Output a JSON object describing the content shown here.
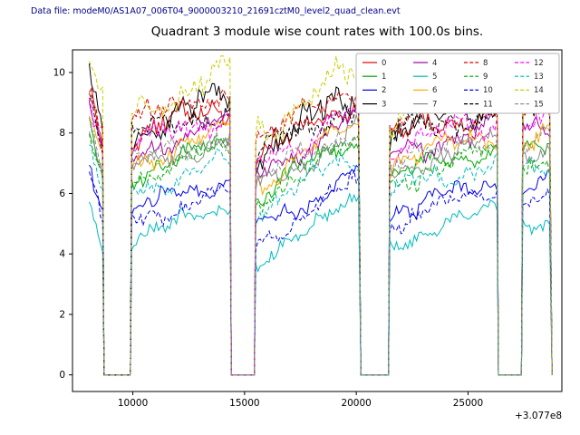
{
  "header": {
    "data_file_label": "Data file: modeM0/AS1A07_006T04_9000003210_21691cztM0_level2_quad_clean.evt",
    "color": "#00008b"
  },
  "chart_data": {
    "type": "line",
    "title": "Quadrant 3 module wise count rates with 100.0s bins.",
    "xlabel": "",
    "ylabel": "",
    "x_offset_label": "+3.077e8",
    "xlim": [
      7300,
      29200
    ],
    "ylim": [
      -0.55,
      10.75
    ],
    "xticks": [
      10000,
      15000,
      20000,
      25000
    ],
    "xtick_labels": [
      "10000",
      "15000",
      "20000",
      "25000"
    ],
    "yticks": [
      0,
      2,
      4,
      6,
      8,
      10
    ],
    "ytick_labels": [
      "0",
      "2",
      "4",
      "6",
      "8",
      "10"
    ],
    "bin_seconds": 100,
    "grid": false,
    "legend": {
      "position": "top-right",
      "columns": 4,
      "rows": 4
    },
    "segments": [
      {
        "range": [
          8050,
          8650
        ],
        "trend": [
          1.0,
          -0.6
        ]
      },
      {
        "range": [
          9950,
          14350
        ],
        "trend": [
          -0.5,
          0.55
        ]
      },
      {
        "range": [
          15500,
          20150
        ],
        "trend": [
          -1.15,
          0.75
        ]
      },
      {
        "range": [
          21500,
          26300
        ],
        "trend": [
          -0.55,
          0.45
        ]
      },
      {
        "range": [
          27450,
          28700
        ],
        "trend": [
          0.1,
          0.3
        ]
      }
    ],
    "gaps_drop_to_zero": true,
    "series": [
      {
        "name": "0",
        "color": "#dd0000",
        "dash": "solid",
        "level": 8.35,
        "noise": 0.3
      },
      {
        "name": "1",
        "color": "#00aa00",
        "dash": "solid",
        "level": 7.1,
        "noise": 0.28
      },
      {
        "name": "2",
        "color": "#0000ee",
        "dash": "solid",
        "level": 5.95,
        "noise": 0.25
      },
      {
        "name": "3",
        "color": "#000000",
        "dash": "solid",
        "level": 8.55,
        "noise": 0.4
      },
      {
        "name": "4",
        "color": "#a000a0",
        "dash": "solid",
        "level": 7.85,
        "noise": 0.3
      },
      {
        "name": "5",
        "color": "#00bbbb",
        "dash": "solid",
        "level": 4.95,
        "noise": 0.25
      },
      {
        "name": "6",
        "color": "#ffaa00",
        "dash": "solid",
        "level": 7.55,
        "noise": 0.3
      },
      {
        "name": "7",
        "color": "#888888",
        "dash": "solid",
        "level": 7.3,
        "noise": 0.28
      },
      {
        "name": "8",
        "color": "#dd0000",
        "dash": "dashed",
        "level": 8.8,
        "noise": 0.34
      },
      {
        "name": "9",
        "color": "#00aa00",
        "dash": "dashed",
        "level": 6.95,
        "noise": 0.28
      },
      {
        "name": "10",
        "color": "#0000ee",
        "dash": "dashed",
        "level": 5.6,
        "noise": 0.25
      },
      {
        "name": "11",
        "color": "#000000",
        "dash": "dashed",
        "level": 8.35,
        "noise": 0.34
      },
      {
        "name": "12",
        "color": "#ff00ff",
        "dash": "dashed",
        "level": 8.05,
        "noise": 0.32
      },
      {
        "name": "13",
        "color": "#00bbbb",
        "dash": "dashed",
        "level": 6.6,
        "noise": 0.28
      },
      {
        "name": "14",
        "color": "#cccc00",
        "dash": "dashed",
        "level": 9.3,
        "noise": 0.42
      },
      {
        "name": "15",
        "color": "#909090",
        "dash": "dashed",
        "level": 7.5,
        "noise": 0.28
      }
    ]
  }
}
